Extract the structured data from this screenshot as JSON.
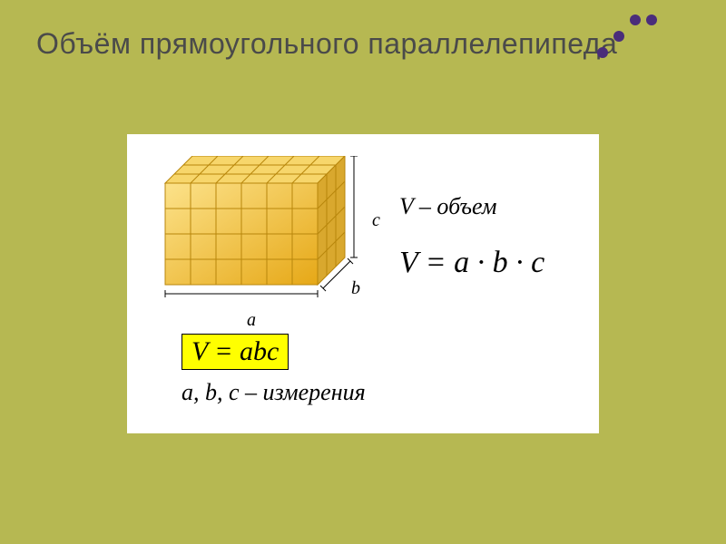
{
  "slide": {
    "background_color": "#b6b852",
    "title": "Объём прямоугольного параллелепипеда",
    "title_color": "#4a4a4a",
    "title_fontsize": 32
  },
  "dots": {
    "rows": 4,
    "cols": 6,
    "radius": 6,
    "gap": 18,
    "colors": [
      [
        "none",
        "none",
        "#4a2d7a",
        "#4a2d7a",
        "none",
        "none"
      ],
      [
        "none",
        "#4a2d7a",
        "none",
        "none",
        "#b6b852",
        "#b6b852"
      ],
      [
        "#4a2d7a",
        "none",
        "#b6b852",
        "#b6b852",
        "none",
        "none"
      ],
      [
        "none",
        "#b6b852",
        "none",
        "none",
        "none",
        "none"
      ]
    ]
  },
  "cube": {
    "cols_a": 6,
    "rows_c": 4,
    "depth_b": 3,
    "cell_size": 28,
    "skew": 10,
    "face_color": "#f5c542",
    "top_color": "#f7d66b",
    "side_color": "#d9a82e",
    "edge_color": "#b8860b",
    "labels": {
      "a": "a",
      "b": "b",
      "c": "c"
    },
    "dim_color": "#000000"
  },
  "formulas": {
    "volume_label": "V – объем",
    "main_formula": "V = a · b · c",
    "highlighted": "V = abc",
    "highlight_bg": "#ffff00",
    "measurements": "a, b, c – измерения"
  },
  "content_box_bg": "#ffffff"
}
